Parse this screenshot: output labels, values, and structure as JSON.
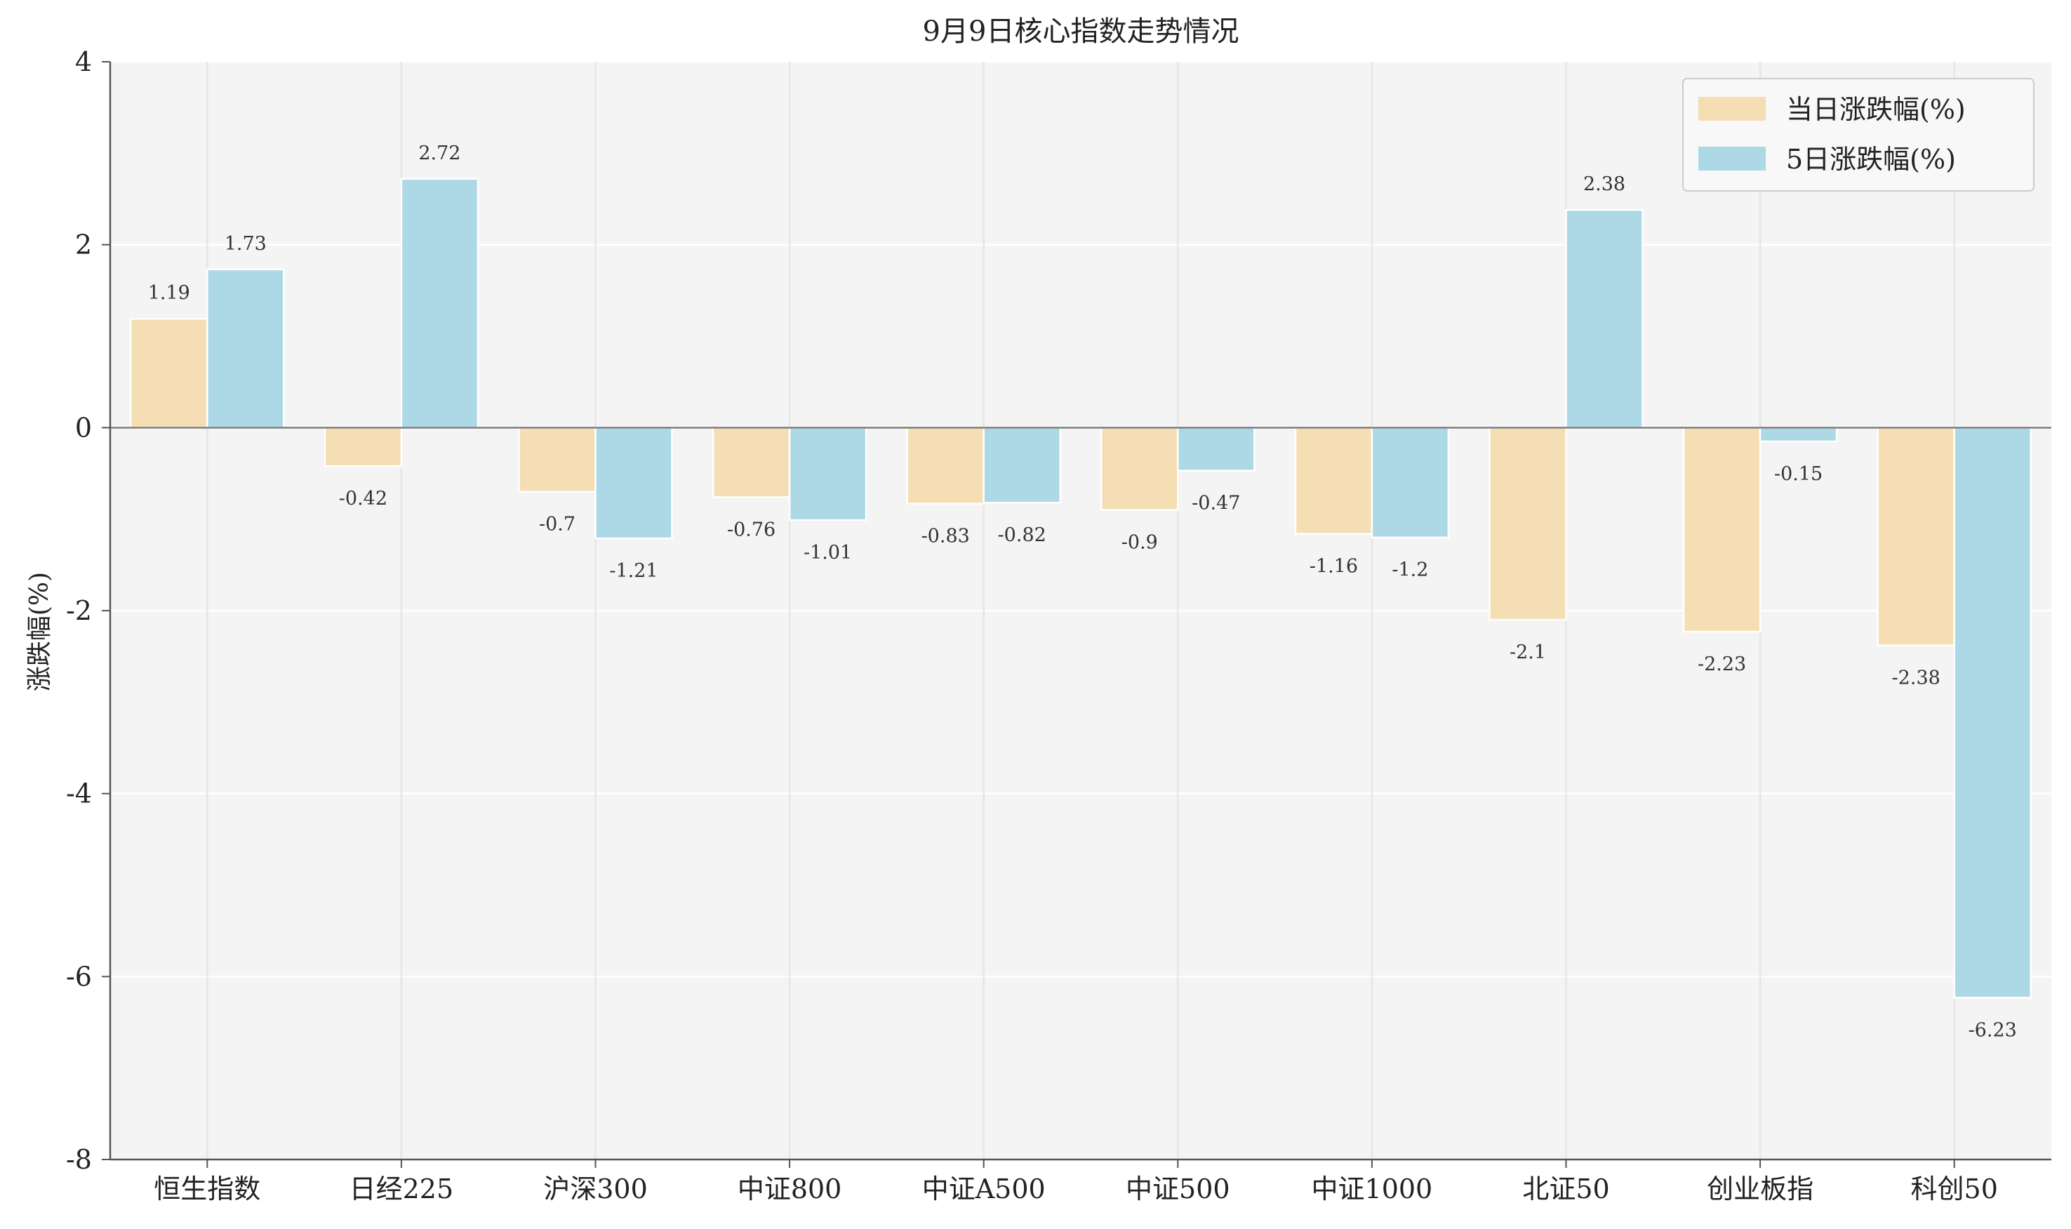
{
  "chart_data": {
    "type": "bar",
    "title": "9月9日核心指数走势情况",
    "xlabel": "",
    "ylabel": "涨跌幅(%)",
    "ylim": [
      -8,
      4
    ],
    "yticks": [
      -8,
      -6,
      -4,
      -2,
      0,
      2,
      4
    ],
    "grid": true,
    "legend_position": "top-right",
    "categories": [
      "恒生指数",
      "日经225",
      "沪深300",
      "中证800",
      "中证A500",
      "中证500",
      "中证1000",
      "北证50",
      "创业板指",
      "科创50"
    ],
    "series": [
      {
        "name": "当日涨跌幅(%)",
        "color": "#F5DEB3",
        "values": [
          1.19,
          -0.42,
          -0.7,
          -0.76,
          -0.83,
          -0.9,
          -1.16,
          -2.1,
          -2.23,
          -2.38
        ],
        "labels": [
          "1.19",
          "-0.42",
          "-0.7",
          "-0.76",
          "-0.83",
          "-0.9",
          "-1.16",
          "-2.1",
          "-2.23",
          "-2.38"
        ]
      },
      {
        "name": "5日涨跌幅(%)",
        "color": "#ADD8E6",
        "values": [
          1.73,
          2.72,
          -1.21,
          -1.01,
          -0.82,
          -0.47,
          -1.2,
          2.38,
          -0.15,
          -6.23
        ],
        "labels": [
          "1.73",
          "2.72",
          "-1.21",
          "-1.01",
          "-0.82",
          "-0.47",
          "-1.2",
          "2.38",
          "-0.15",
          "-6.23"
        ]
      }
    ]
  }
}
